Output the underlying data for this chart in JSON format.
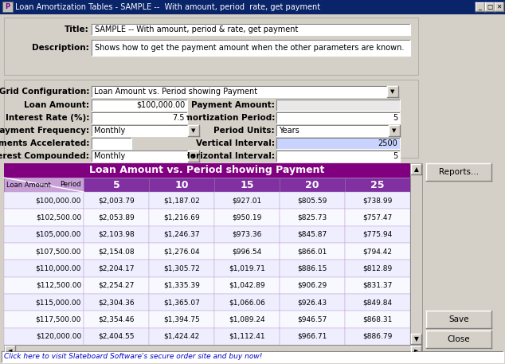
{
  "title_bar": "Loan Amortization Tables - SAMPLE --  With amount, period  rate, get payment",
  "title_field": "SAMPLE -- With amount, period & rate, get payment",
  "description_field": "Shows how to get the payment amount when the other parameters are known.",
  "grid_config": "Loan Amount vs. Period showing Payment",
  "loan_amount": "$100,000.00",
  "interest_rate": "7.5",
  "amort_period": "5",
  "payment_freq": "Monthly",
  "period_units": "Years",
  "vertical_interval": "2500",
  "interest_compounded": "Monthly",
  "horizontal_interval": "5",
  "table_title": "Loan Amount vs. Period showing Payment",
  "col_headers": [
    "5",
    "10",
    "15",
    "20",
    "25"
  ],
  "row_labels": [
    "$100,000.00",
    "$102,500.00",
    "$105,000.00",
    "$107,500.00",
    "$110,000.00",
    "$112,500.00",
    "$115,000.00",
    "$117,500.00",
    "$120,000.00"
  ],
  "table_data": [
    [
      "$2,003.79",
      "$1,187.02",
      "$927.01",
      "$805.59",
      "$738.99"
    ],
    [
      "$2,053.89",
      "$1,216.69",
      "$950.19",
      "$825.73",
      "$757.47"
    ],
    [
      "$2,103.98",
      "$1,246.37",
      "$973.36",
      "$845.87",
      "$775.94"
    ],
    [
      "$2,154.08",
      "$1,276.04",
      "$996.54",
      "$866.01",
      "$794.42"
    ],
    [
      "$2,204.17",
      "$1,305.72",
      "$1,019.71",
      "$886.15",
      "$812.89"
    ],
    [
      "$2,254.27",
      "$1,335.39",
      "$1,042.89",
      "$906.29",
      "$831.37"
    ],
    [
      "$2,304.36",
      "$1,365.07",
      "$1,066.06",
      "$926.43",
      "$849.84"
    ],
    [
      "$2,354.46",
      "$1,394.75",
      "$1,089.24",
      "$946.57",
      "$868.31"
    ],
    [
      "$2,404.55",
      "$1,424.42",
      "$1,112.41",
      "$966.71",
      "$886.79"
    ]
  ],
  "status_bar": "Click here to visit Slateboard Software's secure order site and buy now!",
  "window_bg": "#d4d0c8",
  "title_bar_bg": "#0a246a",
  "form_panel_bg": "#d4d0c8",
  "table_purple": "#800080",
  "corner_purple": "#c8a0d8",
  "col_header_purple": "#8030a0",
  "vi_highlight": "#c8d4ff"
}
